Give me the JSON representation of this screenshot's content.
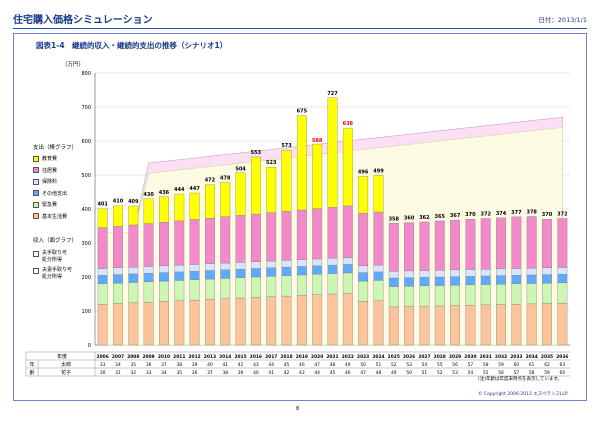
{
  "header": {
    "title": "住宅購入価格シミュレーション",
    "date": "日付：2013/1/1"
  },
  "figure": {
    "title": "図表1-4　継続的収入・継続的支出の推移（シナリオ1）",
    "unit": "（万円）"
  },
  "legend": {
    "bars_title": "支出（棒グラフ）",
    "bars": [
      {
        "label": "教育費",
        "color": "#ffff00"
      },
      {
        "label": "住居費",
        "color": "#f28ac9"
      },
      {
        "label": "保険料",
        "color": "#d9e5ff"
      },
      {
        "label": "その他支出",
        "color": "#5fa9ff"
      },
      {
        "label": "緊急費",
        "color": "#cdf5b4"
      },
      {
        "label": "基本生活費",
        "color": "#fbc49a"
      }
    ],
    "area_title": "収入（面グラフ）",
    "areas": [
      {
        "line1": "夫手取り可",
        "line2": "処分所得",
        "color": "#ffffff"
      },
      {
        "line1": "夫妻手取り可",
        "line2": "処分所得",
        "color": "#ffffff"
      }
    ]
  },
  "table": {
    "year_header": "年度",
    "age_header": "年齢",
    "row1_label": "太郎",
    "row2_label": "花子",
    "row1": [
      33,
      34,
      35,
      36,
      37,
      38,
      39,
      40,
      41,
      42,
      43,
      44,
      45,
      46,
      47,
      48,
      49,
      50,
      51,
      52,
      53,
      54,
      55,
      56,
      57,
      58,
      59,
      60,
      61,
      62,
      63
    ],
    "row2": [
      30,
      31,
      32,
      33,
      34,
      35,
      36,
      37,
      38,
      39,
      40,
      41,
      42,
      43,
      44,
      45,
      46,
      47,
      48,
      49,
      50,
      51,
      52,
      53,
      54,
      55,
      56,
      57,
      58,
      59,
      60
    ]
  },
  "chart_data": {
    "type": "bar",
    "stacked": true,
    "ylim": [
      0,
      800
    ],
    "yticks": [
      0,
      100,
      200,
      300,
      400,
      500,
      600,
      700,
      800
    ],
    "categories": [
      "2006",
      "2007",
      "2008",
      "2009",
      "2010",
      "2011",
      "2012",
      "2013",
      "2014",
      "2015",
      "2016",
      "2017",
      "2018",
      "2019",
      "2020",
      "2021",
      "2022",
      "2023",
      "2024",
      "2025",
      "2026",
      "2027",
      "2028",
      "2029",
      "2030",
      "2031",
      "2032",
      "2033",
      "2034",
      "2035",
      "2036"
    ],
    "totals": [
      401,
      410,
      409,
      430,
      436,
      444,
      447,
      472,
      478,
      504,
      553,
      523,
      573,
      675,
      588,
      727,
      638,
      496,
      499,
      358,
      360,
      362,
      365,
      367,
      370,
      372,
      374,
      377,
      378,
      370,
      372
    ],
    "highlight_indices": [
      14,
      16
    ],
    "highlight_color": "#ff0000",
    "series": [
      {
        "name": "基本生活費",
        "color": "#fbc49a",
        "values": [
          120,
          122,
          124,
          126,
          128,
          130,
          132,
          134,
          136,
          138,
          140,
          142,
          144,
          146,
          148,
          150,
          152,
          128,
          130,
          112,
          113,
          114,
          115,
          116,
          117,
          118,
          119,
          120,
          121,
          122,
          123
        ]
      },
      {
        "name": "緊急費",
        "color": "#cdf5b4",
        "values": [
          60,
          60,
          60,
          60,
          60,
          60,
          60,
          60,
          60,
          60,
          60,
          60,
          60,
          60,
          60,
          60,
          60,
          60,
          60,
          60,
          60,
          60,
          60,
          60,
          60,
          60,
          60,
          60,
          60,
          60,
          60
        ]
      },
      {
        "name": "その他支出",
        "color": "#5fa9ff",
        "values": [
          25,
          25,
          25,
          25,
          25,
          25,
          25,
          25,
          25,
          25,
          25,
          25,
          25,
          25,
          25,
          25,
          25,
          25,
          25,
          25,
          25,
          25,
          25,
          25,
          25,
          25,
          25,
          25,
          25,
          25,
          25
        ]
      },
      {
        "name": "保険料",
        "color": "#d9e5ff",
        "values": [
          20,
          20,
          20,
          20,
          20,
          20,
          20,
          20,
          20,
          20,
          20,
          20,
          20,
          20,
          20,
          20,
          20,
          20,
          20,
          20,
          20,
          20,
          20,
          20,
          20,
          20,
          20,
          20,
          20,
          20,
          20
        ]
      },
      {
        "name": "住居費",
        "color": "#f28ac9",
        "values": [
          120,
          122,
          124,
          126,
          128,
          130,
          132,
          134,
          136,
          138,
          140,
          142,
          144,
          146,
          148,
          150,
          152,
          154,
          156,
          141,
          142,
          143,
          145,
          146,
          148,
          149,
          150,
          152,
          152,
          143,
          144
        ]
      },
      {
        "name": "教育費",
        "color": "#ffff00",
        "values": [
          56,
          61,
          56,
          73,
          75,
          79,
          78,
          99,
          101,
          126,
          168,
          134,
          180,
          278,
          190,
          322,
          229,
          109,
          108,
          0,
          0,
          0,
          0,
          0,
          0,
          0,
          0,
          0,
          0,
          0,
          0
        ]
      }
    ],
    "areas": [
      {
        "name": "夫手取り可処分所得",
        "color": "#fdfbe4",
        "border": "#d8d29a",
        "values": [
          330,
          330,
          330,
          505,
          510,
          515,
          520,
          525,
          530,
          535,
          540,
          545,
          550,
          555,
          560,
          565,
          570,
          575,
          580,
          585,
          590,
          595,
          600,
          605,
          610,
          615,
          620,
          625,
          630,
          635,
          640
        ]
      },
      {
        "name": "夫妻手取り可処分所得",
        "color": "#fbe0f5",
        "border": "#c8a3c8",
        "values": [
          330,
          330,
          330,
          535,
          540,
          545,
          550,
          555,
          560,
          565,
          570,
          575,
          580,
          585,
          590,
          595,
          600,
          605,
          610,
          615,
          620,
          625,
          630,
          635,
          640,
          645,
          650,
          655,
          660,
          665,
          670
        ]
      }
    ]
  },
  "footer": {
    "note": "(注)年齢は年度末時点を表示しています。",
    "copyright": "© Copyright 2006-2013 エスペランスLLP",
    "page": "8"
  }
}
